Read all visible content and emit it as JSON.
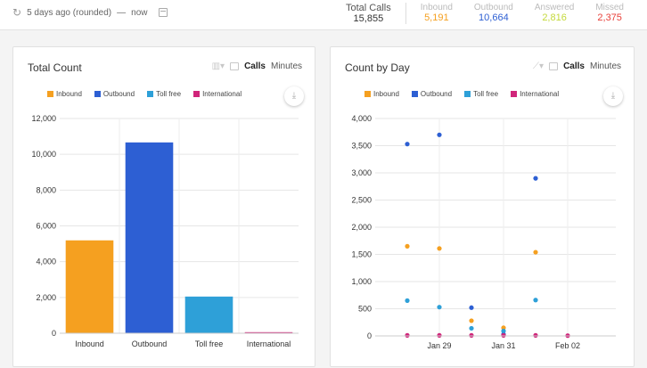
{
  "header": {
    "range_label": "5 days ago (rounded)",
    "range_sep": "—",
    "range_end": "now",
    "stats": [
      {
        "label": "Total Calls",
        "value": "15,855",
        "color": "#333333"
      },
      {
        "label": "Inbound",
        "value": "5,191",
        "color": "#f5a020"
      },
      {
        "label": "Outbound",
        "value": "10,664",
        "color": "#2d5fd3"
      },
      {
        "label": "Answered",
        "value": "2,816",
        "color": "#c4d93a"
      },
      {
        "label": "Missed",
        "value": "2,375",
        "color": "#e8403a"
      }
    ]
  },
  "panels": {
    "total": {
      "title": "Total Count",
      "toggle_calls": "Calls",
      "toggle_minutes": "Minutes"
    },
    "byday": {
      "title": "Count by Day",
      "toggle_calls": "Calls",
      "toggle_minutes": "Minutes"
    }
  },
  "legend": [
    {
      "name": "Inbound",
      "color": "#f5a020"
    },
    {
      "name": "Outbound",
      "color": "#2d5fd3"
    },
    {
      "name": "Toll free",
      "color": "#2ea0d8"
    },
    {
      "name": "International",
      "color": "#d0257a"
    }
  ],
  "chart_data": [
    {
      "type": "bar",
      "categories": [
        "Inbound",
        "Outbound",
        "Toll free",
        "International"
      ],
      "values": [
        5191,
        10664,
        2050,
        60
      ],
      "colors": [
        "#f5a020",
        "#2d5fd3",
        "#2ea0d8",
        "#d0257a"
      ],
      "yticks": [
        "0",
        "2,000",
        "4,000",
        "6,000",
        "8,000",
        "10,000",
        "12,000"
      ],
      "ylim": [
        0,
        12000
      ],
      "grid": true
    },
    {
      "type": "scatter",
      "xticks": [
        "Jan 29",
        "Jan 31",
        "Feb 02"
      ],
      "yticks": [
        "0",
        "500",
        "1,000",
        "1,500",
        "2,000",
        "2,500",
        "3,000",
        "3,500",
        "4,000"
      ],
      "ylim": [
        0,
        4000
      ],
      "xlim": [
        27,
        34.5
      ],
      "xtick_values": [
        29,
        31,
        33
      ],
      "grid": true,
      "series": [
        {
          "name": "Inbound",
          "color": "#f5a020",
          "x": [
            28,
            29,
            30,
            31,
            32
          ],
          "y": [
            1650,
            1610,
            280,
            150,
            1540
          ]
        },
        {
          "name": "Outbound",
          "color": "#2d5fd3",
          "x": [
            28,
            29,
            30,
            31,
            32
          ],
          "y": [
            3530,
            3700,
            520,
            30,
            2900
          ]
        },
        {
          "name": "Toll free",
          "color": "#2ea0d8",
          "x": [
            28,
            29,
            30,
            31,
            32
          ],
          "y": [
            650,
            530,
            140,
            90,
            660
          ]
        },
        {
          "name": "International",
          "color": "#d0257a",
          "x": [
            28,
            29,
            30,
            31,
            32,
            33
          ],
          "y": [
            10,
            10,
            10,
            10,
            10,
            5
          ]
        }
      ]
    }
  ]
}
